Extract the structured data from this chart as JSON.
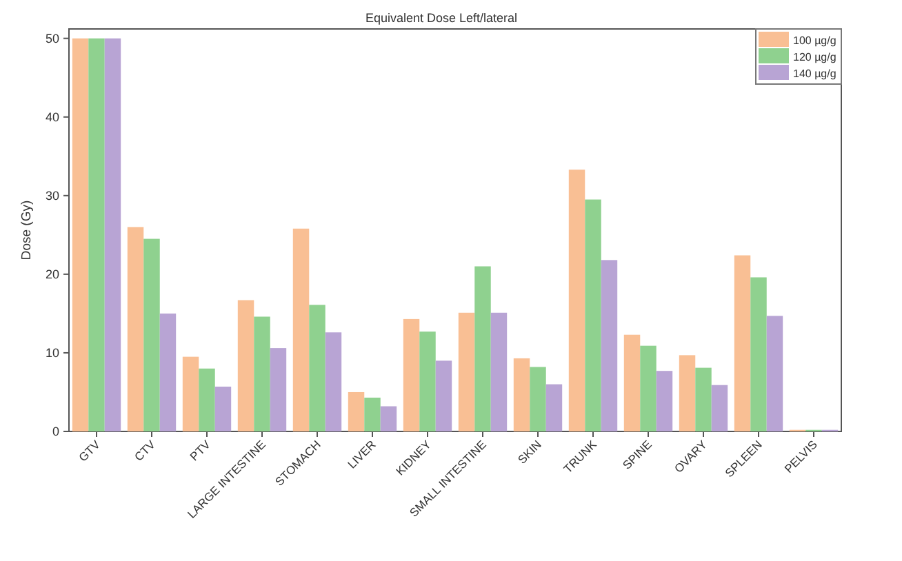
{
  "chart_data": {
    "type": "bar",
    "title": "Equivalent Dose Left/lateral",
    "ylabel": "Dose (Gy)",
    "categories": [
      "GTV",
      "CTV",
      "PTV",
      "LARGE INTESTINE",
      "STOMACH",
      "LIVER",
      "KIDNEY",
      "SMALL INTESTINE",
      "SKIN",
      "TRUNK",
      "SPINE",
      "OVARY",
      "SPLEEN",
      "PELVIS"
    ],
    "series": [
      {
        "name": "100 µg/g",
        "color": "#f9bf94",
        "values": [
          50,
          26,
          9.5,
          16.7,
          25.8,
          5,
          14.3,
          15.1,
          9.3,
          33.3,
          12.3,
          9.7,
          22.4,
          0.2
        ]
      },
      {
        "name": "120 µg/g",
        "color": "#8fd18f",
        "values": [
          50,
          24.5,
          8,
          14.6,
          16.1,
          4.3,
          12.7,
          21,
          8.2,
          29.5,
          10.9,
          8.1,
          19.6,
          0.2
        ]
      },
      {
        "name": "140 µg/g",
        "color": "#b8a4d4",
        "values": [
          50,
          15,
          5.7,
          10.6,
          12.6,
          3.2,
          9,
          15.1,
          6,
          21.8,
          7.7,
          5.9,
          14.7,
          0.2
        ]
      }
    ],
    "ylim": [
      0,
      51.2
    ],
    "yticks": [
      0,
      10,
      20,
      30,
      40,
      50
    ],
    "legend": "top right"
  }
}
